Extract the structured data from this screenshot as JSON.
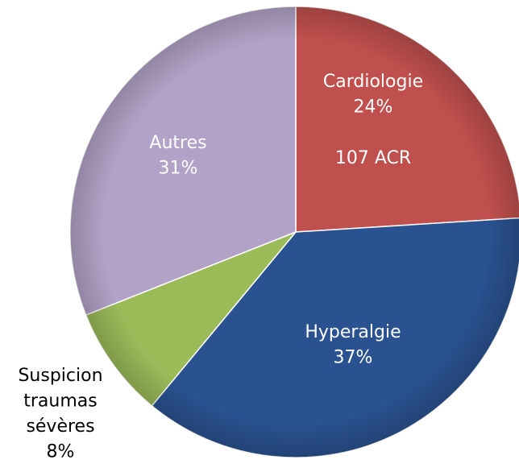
{
  "chart_data": {
    "type": "pie",
    "categories": [
      "Cardiologie",
      "Hyperalgie",
      "Suspicion traumas sévères",
      "Autres"
    ],
    "values": [
      24,
      37,
      8,
      31
    ],
    "value_labels": [
      "24%",
      "37%",
      "8%",
      "31%"
    ],
    "colors": [
      "#c0504d",
      "#2a5290",
      "#9bbb59",
      "#b3a2c7"
    ],
    "annotation": "107 ACR"
  }
}
